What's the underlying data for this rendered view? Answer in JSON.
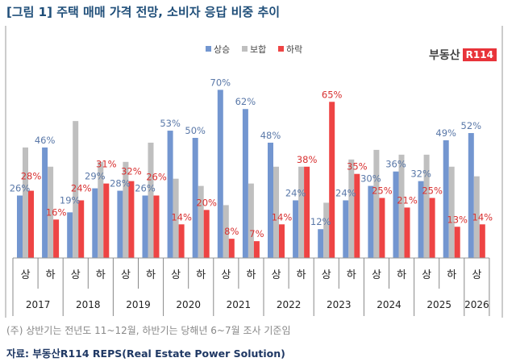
{
  "title": "[그림 1] 주택 매매 가격 전망, 소비자 응답 비중 추이",
  "logo": {
    "text": "부동산",
    "badge": "R114"
  },
  "footnote": "(주) 상반기는 전년도 11~12월, 하반기는 당해년 6~7월 조사 기준임",
  "source": "자료: 부동산R114 REPS(Real Estate Power Solution)",
  "chart_data": {
    "type": "bar",
    "title": "",
    "categories": [
      "상",
      "하",
      "상",
      "하",
      "상",
      "하",
      "상",
      "하",
      "상",
      "하",
      "상",
      "하",
      "상",
      "하",
      "상",
      "하",
      "상",
      "하",
      "상"
    ],
    "years": [
      "2017",
      "2018",
      "2019",
      "2020",
      "2021",
      "2022",
      "2023",
      "2024",
      "2025",
      "2026"
    ],
    "colors": {
      "상승": "#7396d0",
      "보합": "#bfbfbf",
      "하락": "#ee4444"
    },
    "series": [
      {
        "name": "상승",
        "labeled": true,
        "values": [
          26,
          46,
          19,
          29,
          28,
          26,
          53,
          50,
          70,
          62,
          48,
          24,
          12,
          24,
          30,
          36,
          32,
          49,
          52
        ]
      },
      {
        "name": "보합",
        "labeled": false,
        "values": [
          46,
          38,
          57,
          40,
          40,
          48,
          33,
          30,
          22,
          31,
          38,
          38,
          23,
          41,
          45,
          43,
          43,
          38,
          34
        ]
      },
      {
        "name": "하락",
        "labeled": true,
        "values": [
          28,
          16,
          24,
          31,
          32,
          26,
          14,
          20,
          8,
          7,
          14,
          38,
          65,
          35,
          25,
          21,
          25,
          13,
          14
        ]
      }
    ],
    "ylim": [
      0,
      75
    ],
    "grid": false,
    "legend": "top-center"
  }
}
